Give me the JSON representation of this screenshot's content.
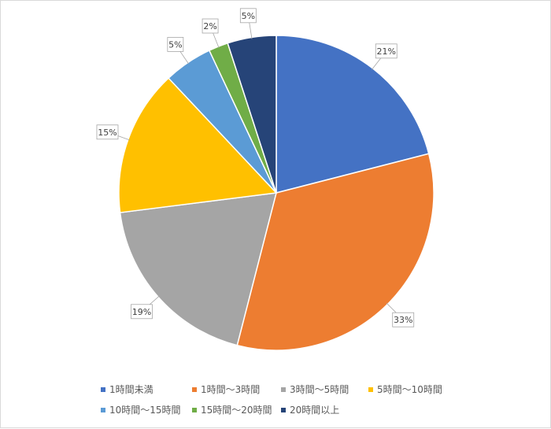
{
  "chart_data": {
    "type": "pie",
    "start_angle_deg": 0,
    "direction": "clockwise",
    "categories": [
      "1時間未満",
      "1時間～3時間",
      "3時間～5時間",
      "5時間～10時間",
      "10時間～15時間",
      "15時間～20時間",
      "20時間以上"
    ],
    "values": [
      21,
      33,
      19,
      15,
      5,
      2,
      5
    ],
    "data_labels": [
      "21%",
      "33%",
      "19%",
      "15%",
      "5%",
      "2%",
      "5%"
    ],
    "colors": [
      "#4472C4",
      "#ED7D31",
      "#A5A5A5",
      "#FFC000",
      "#5B9BD5",
      "#70AD47",
      "#264478"
    ],
    "legend_position": "bottom"
  }
}
